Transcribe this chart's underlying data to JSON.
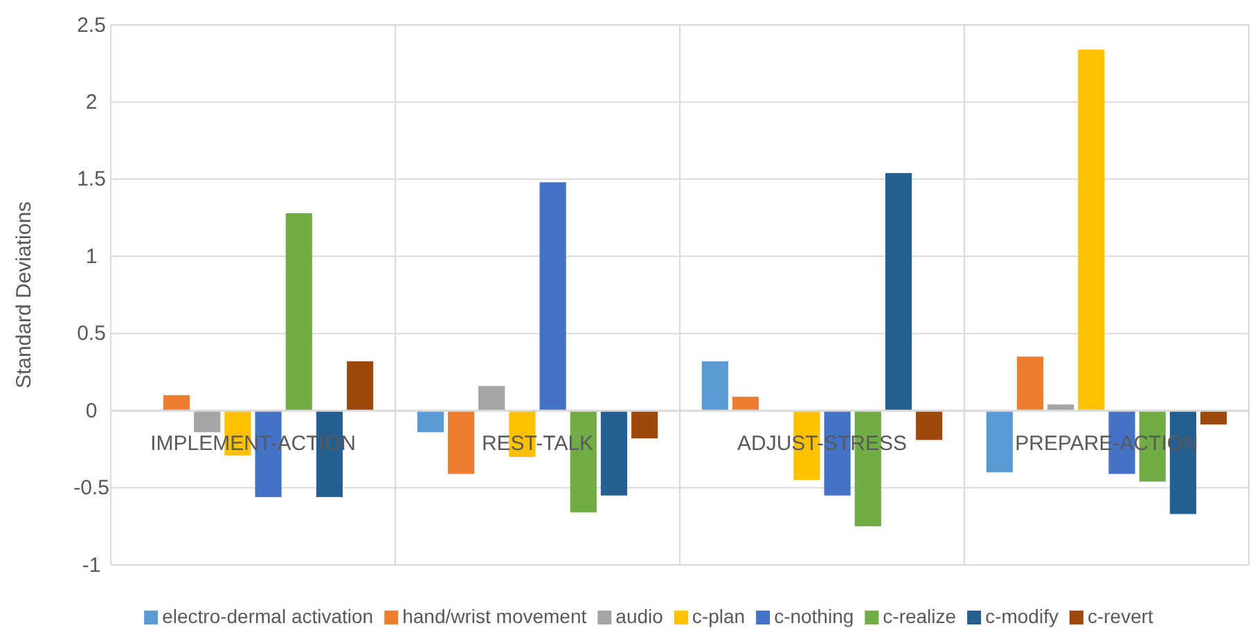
{
  "chart_data": {
    "type": "bar",
    "ylabel": "Standard Deviations",
    "categories": [
      "IMPLEMENT-ACTION",
      "REST-TALK",
      "ADJUST-STRESS",
      "PREPARE-ACTION"
    ],
    "series": [
      {
        "name": "electro-dermal activation",
        "color": "#5b9bd5",
        "values": [
          0,
          -0.14,
          0.32,
          -0.4
        ]
      },
      {
        "name": "hand/wrist movement",
        "color": "#ed7d31",
        "values": [
          0.1,
          -0.41,
          0.09,
          0.35
        ]
      },
      {
        "name": "audio",
        "color": "#a5a5a5",
        "values": [
          -0.14,
          0.16,
          0,
          0.04
        ]
      },
      {
        "name": "c-plan",
        "color": "#ffc000",
        "values": [
          -0.29,
          -0.3,
          -0.45,
          2.34
        ]
      },
      {
        "name": "c-nothing",
        "color": "#4472c4",
        "values": [
          -0.56,
          1.48,
          -0.55,
          -0.41
        ]
      },
      {
        "name": "c-realize",
        "color": "#70ad47",
        "values": [
          1.28,
          -0.66,
          -0.75,
          -0.46
        ]
      },
      {
        "name": "c-modify",
        "color": "#255e91",
        "values": [
          -0.56,
          -0.55,
          1.54,
          -0.67
        ]
      },
      {
        "name": "c-revert",
        "color": "#9e480e",
        "values": [
          0.32,
          -0.18,
          -0.19,
          -0.09
        ]
      }
    ],
    "ylim": [
      -1,
      2.5
    ],
    "yticks": [
      -1,
      -0.5,
      0,
      0.5,
      1,
      1.5,
      2,
      2.5
    ],
    "grid": true,
    "legend": "bottom"
  }
}
